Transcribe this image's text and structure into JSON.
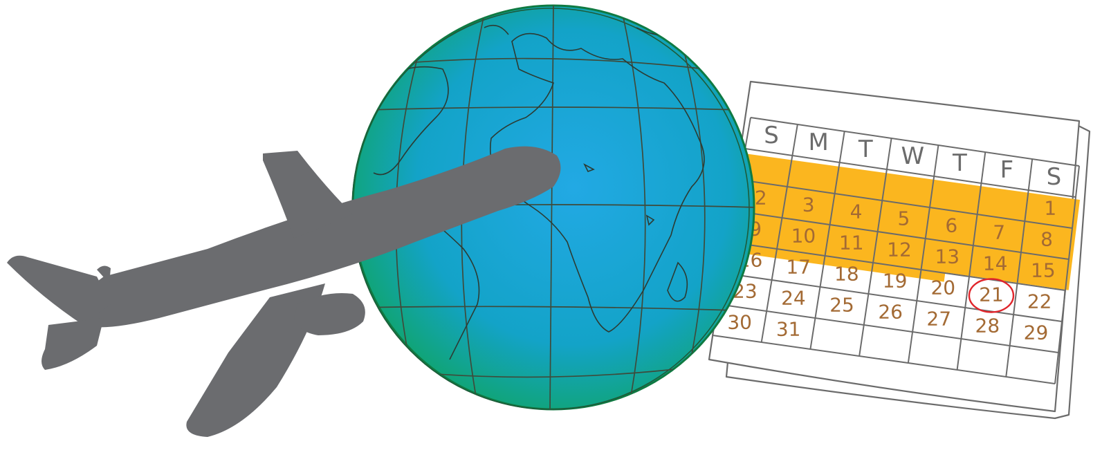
{
  "calendar": {
    "weekdays": [
      "S",
      "M",
      "T",
      "W",
      "T",
      "F",
      "S"
    ],
    "rows": [
      [
        "",
        "",
        "",
        "",
        "",
        "",
        "1"
      ],
      [
        "2",
        "3",
        "4",
        "5",
        "6",
        "7",
        "8"
      ],
      [
        "9",
        "10",
        "11",
        "12",
        "13",
        "14",
        "15"
      ],
      [
        "16",
        "17",
        "18",
        "19",
        "20",
        "21",
        "22"
      ],
      [
        "23",
        "24",
        "25",
        "26",
        "27",
        "28",
        "29"
      ],
      [
        "30",
        "31",
        "",
        "",
        "",
        "",
        ""
      ]
    ],
    "circled_day": "21",
    "highlight_weeks": 3,
    "colors": {
      "highlight": "#fbb61f",
      "number": "#a36a34",
      "circle": "#e0252b",
      "line": "#6b6b6b"
    }
  },
  "globe": {
    "colors": {
      "ocean": "#1aa3d6",
      "rim": "#0f9b56",
      "lines": "#3f4a3a"
    }
  },
  "airplane": {
    "icon": "airplane-silhouette-icon",
    "color": "#6b6c6f"
  }
}
